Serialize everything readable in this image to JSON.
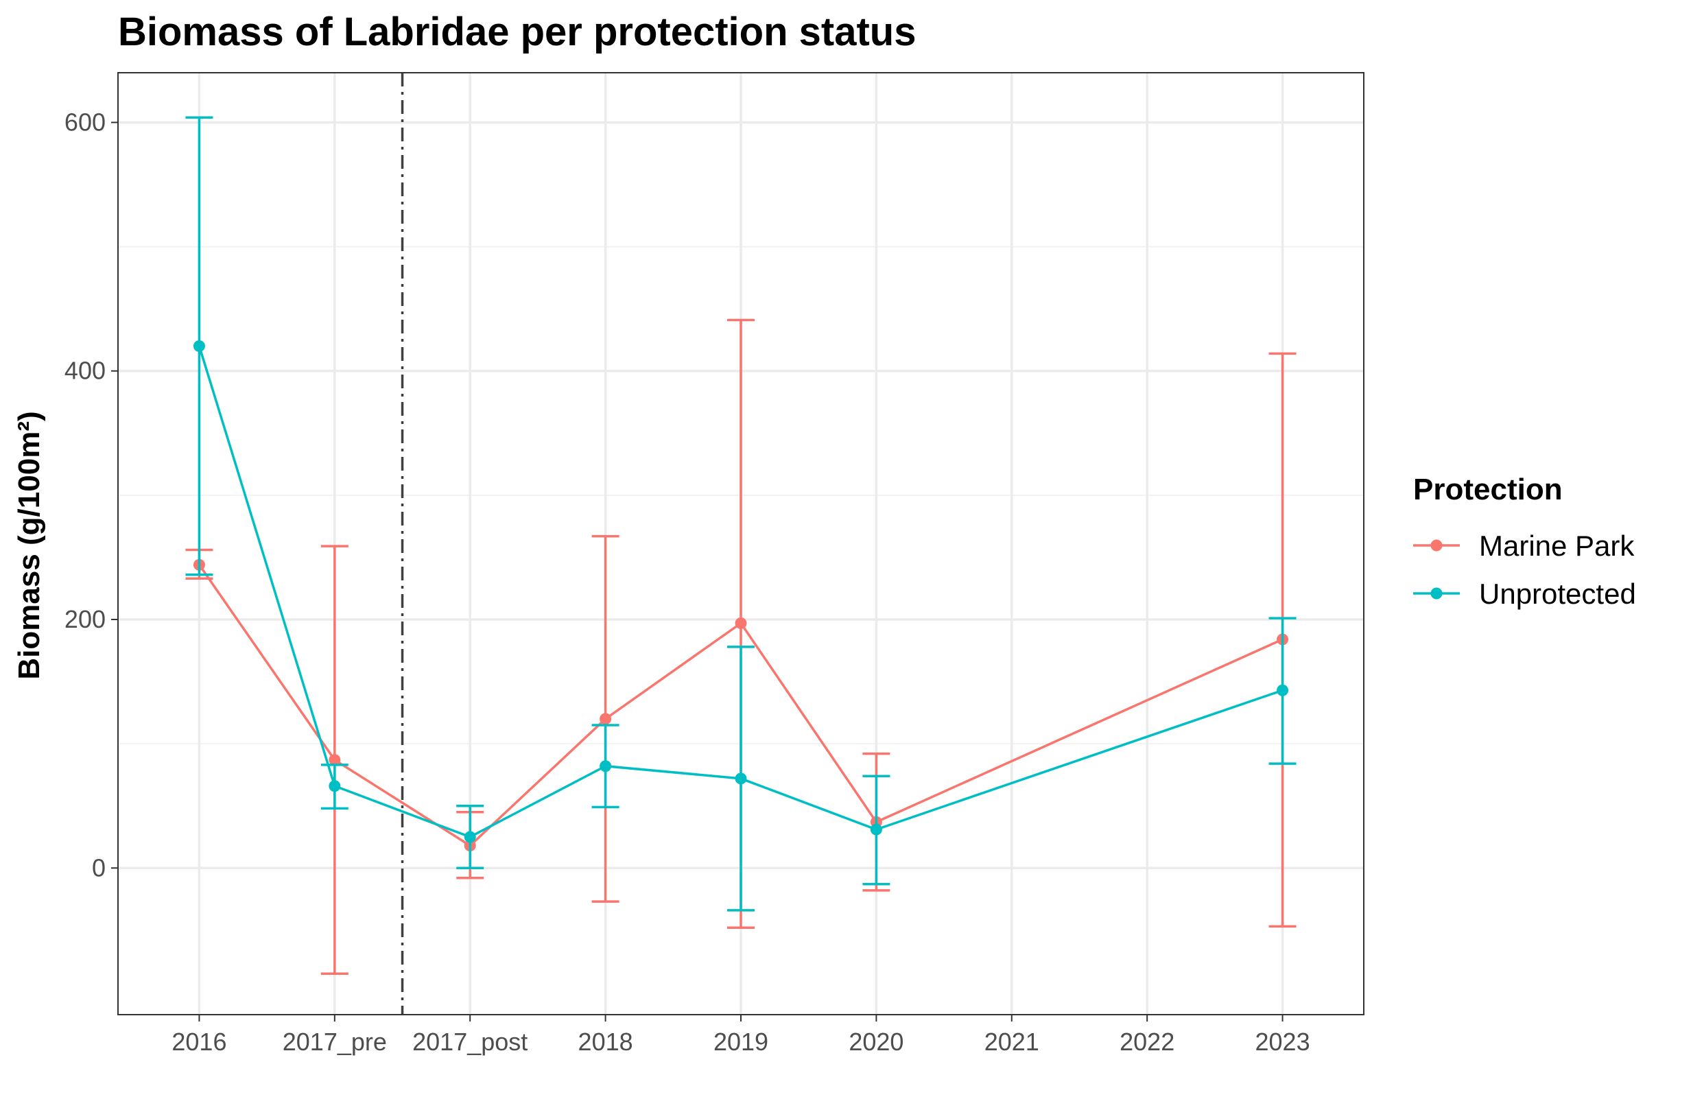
{
  "chart_data": {
    "type": "line",
    "title": "Biomass of Labridae per protection status",
    "xlabel": "",
    "ylabel": "Biomass (g/100m²)",
    "categories": [
      "2016",
      "2017_pre",
      "2017_post",
      "2018",
      "2019",
      "2020",
      "2021",
      "2022",
      "2023"
    ],
    "ylim": [
      -118,
      640
    ],
    "yticks": [
      0,
      200,
      400,
      600
    ],
    "grid": true,
    "reference_line": {
      "between": [
        "2017_pre",
        "2017_post"
      ],
      "style": "dash-dot",
      "color": "#404040"
    },
    "legend": {
      "title": "Protection",
      "position": "right"
    },
    "series": [
      {
        "name": "Marine Park",
        "color": "#F8766D",
        "points": [
          {
            "x": "2016",
            "y": 244,
            "ymin": 233,
            "ymax": 256
          },
          {
            "x": "2017_pre",
            "y": 87,
            "ymin": -85,
            "ymax": 259
          },
          {
            "x": "2017_post",
            "y": 18,
            "ymin": -8,
            "ymax": 45
          },
          {
            "x": "2018",
            "y": 120,
            "ymin": -27,
            "ymax": 267
          },
          {
            "x": "2019",
            "y": 197,
            "ymin": -48,
            "ymax": 441
          },
          {
            "x": "2020",
            "y": 37,
            "ymin": -18,
            "ymax": 92
          },
          {
            "x": "2023",
            "y": 184,
            "ymin": -47,
            "ymax": 414
          }
        ]
      },
      {
        "name": "Unprotected",
        "color": "#00BFC4",
        "points": [
          {
            "x": "2016",
            "y": 420,
            "ymin": 236,
            "ymax": 604
          },
          {
            "x": "2017_pre",
            "y": 66,
            "ymin": 48,
            "ymax": 83
          },
          {
            "x": "2017_post",
            "y": 25,
            "ymin": 0,
            "ymax": 50
          },
          {
            "x": "2018",
            "y": 82,
            "ymin": 49,
            "ymax": 115
          },
          {
            "x": "2019",
            "y": 72,
            "ymin": -34,
            "ymax": 178
          },
          {
            "x": "2020",
            "y": 31,
            "ymin": -13,
            "ymax": 74
          },
          {
            "x": "2023",
            "y": 143,
            "ymin": 84,
            "ymax": 201
          }
        ]
      }
    ]
  }
}
